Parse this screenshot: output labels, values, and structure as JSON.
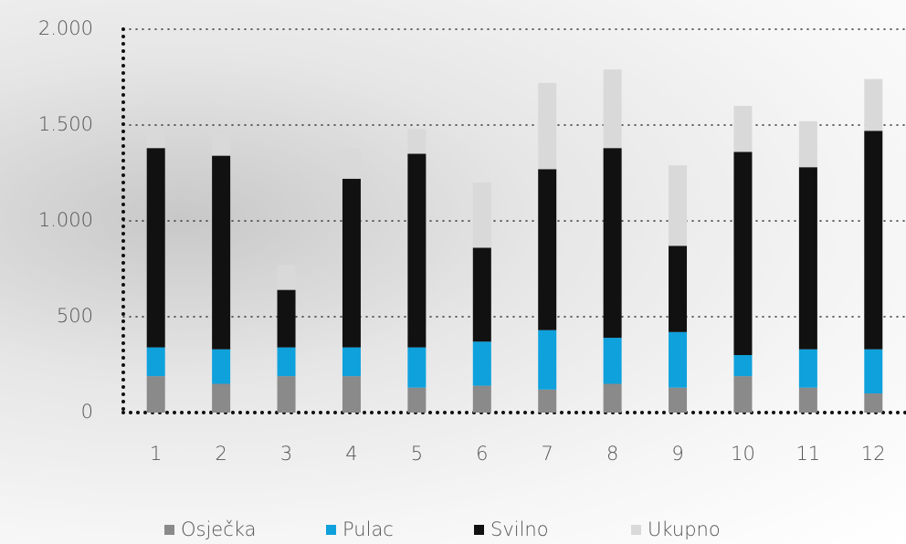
{
  "chart_data": {
    "type": "stacked_bar",
    "categories": [
      "1",
      "2",
      "3",
      "4",
      "5",
      "6",
      "7",
      "8",
      "9",
      "10",
      "11",
      "12"
    ],
    "series": [
      {
        "name": "Osječka",
        "color": "#8a8a8a",
        "values": [
          190,
          150,
          190,
          190,
          130,
          140,
          120,
          150,
          130,
          190,
          130,
          100
        ]
      },
      {
        "name": "Pulac",
        "color": "#0ea1dc",
        "values": [
          150,
          180,
          150,
          150,
          210,
          230,
          310,
          240,
          290,
          110,
          200,
          230
        ]
      },
      {
        "name": "Svilno",
        "color": "#111111",
        "values": [
          1040,
          1010,
          300,
          880,
          1010,
          490,
          840,
          990,
          450,
          1060,
          950,
          1140
        ]
      },
      {
        "name": "Ukupno",
        "color": "#d9d9d9",
        "values": [
          90,
          110,
          130,
          160,
          130,
          340,
          450,
          410,
          420,
          240,
          240,
          270
        ]
      }
    ],
    "ylim": [
      0,
      2000
    ],
    "yticks": [
      0,
      500,
      {
        "value": 1000,
        "label": "1.000"
      },
      {
        "value": 1500,
        "label": "1.500"
      },
      {
        "value": 2000,
        "label": "2.000"
      }
    ],
    "grid": true
  }
}
